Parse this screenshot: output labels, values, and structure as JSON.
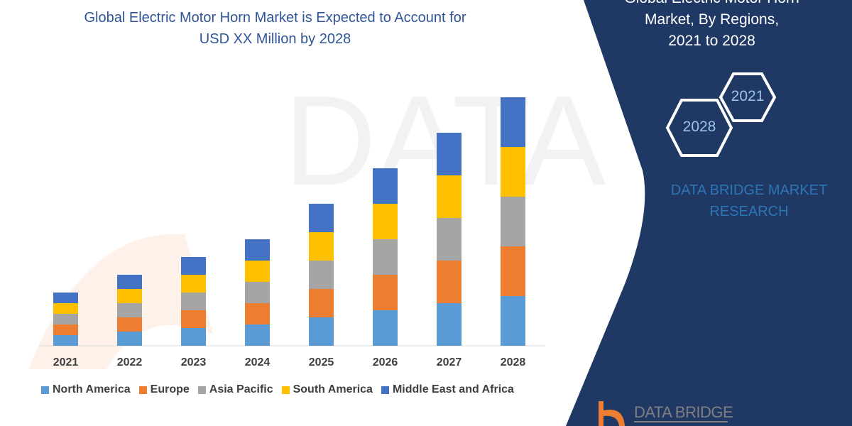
{
  "chart_title": [
    "Global Electric Motor Horn Market is Expected to Account for",
    "USD XX Million by 2028"
  ],
  "side_panel": {
    "title": [
      "Global Electric Motor Horn",
      "Market, By Regions,",
      "2021 to 2028"
    ],
    "hex_labels": [
      "2021",
      "2028"
    ],
    "brand": [
      "DATA BRIDGE MARKET",
      "RESEARCH"
    ],
    "logo_text": "DATA BRIDGE",
    "panel_color": "#1f3864"
  },
  "chart_data": {
    "type": "bar",
    "stacked": true,
    "categories": [
      "2021",
      "2022",
      "2023",
      "2024",
      "2025",
      "2026",
      "2027",
      "2028"
    ],
    "series": [
      {
        "name": "North America",
        "color": "#5b9bd5",
        "values": [
          15,
          20,
          25,
          30,
          40,
          50,
          60,
          70
        ]
      },
      {
        "name": "Europe",
        "color": "#ed7d31",
        "values": [
          15,
          20,
          25,
          30,
          40,
          50,
          60,
          70
        ]
      },
      {
        "name": "Asia Pacific",
        "color": "#a5a5a5",
        "values": [
          15,
          20,
          25,
          30,
          40,
          50,
          60,
          70
        ]
      },
      {
        "name": "South America",
        "color": "#ffc000",
        "values": [
          15,
          20,
          25,
          30,
          40,
          50,
          60,
          70
        ]
      },
      {
        "name": "Middle East and Africa",
        "color": "#4472c4",
        "values": [
          15,
          20,
          25,
          30,
          40,
          50,
          60,
          70
        ]
      }
    ],
    "y_axis_shown": false,
    "grid": false,
    "legend_position": "bottom"
  }
}
